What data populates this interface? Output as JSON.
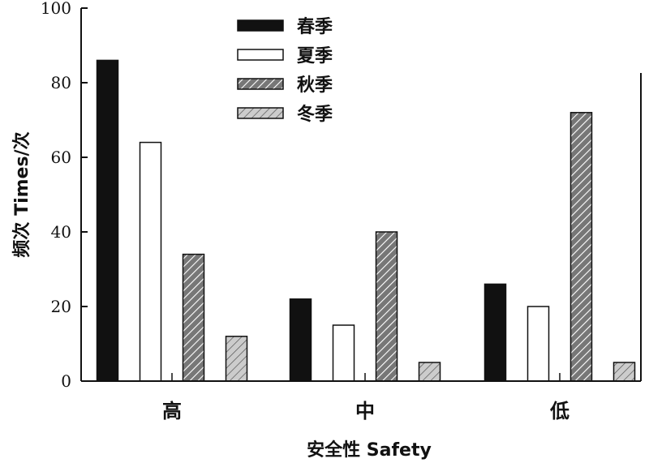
{
  "chart_data": {
    "type": "bar",
    "categories": [
      "高",
      "中",
      "低"
    ],
    "series": [
      {
        "name": "春季",
        "values": [
          86,
          22,
          26
        ],
        "color": "#111111",
        "pattern": "solid"
      },
      {
        "name": "夏季",
        "values": [
          64,
          15,
          20
        ],
        "color": "#ffffff",
        "pattern": "none"
      },
      {
        "name": "秋季",
        "values": [
          34,
          40,
          72
        ],
        "color": "#777777",
        "pattern": "hatch"
      },
      {
        "name": "冬季",
        "values": [
          12,
          5,
          5
        ],
        "color": "#cccccc",
        "pattern": "hatch"
      }
    ],
    "xlabel": "安全性  Safety",
    "ylabel": "频次  Times/次",
    "ylim": [
      0,
      100
    ],
    "yticks": [
      0,
      20,
      40,
      60,
      80,
      100
    ],
    "legend": "top-center",
    "grid": false
  }
}
